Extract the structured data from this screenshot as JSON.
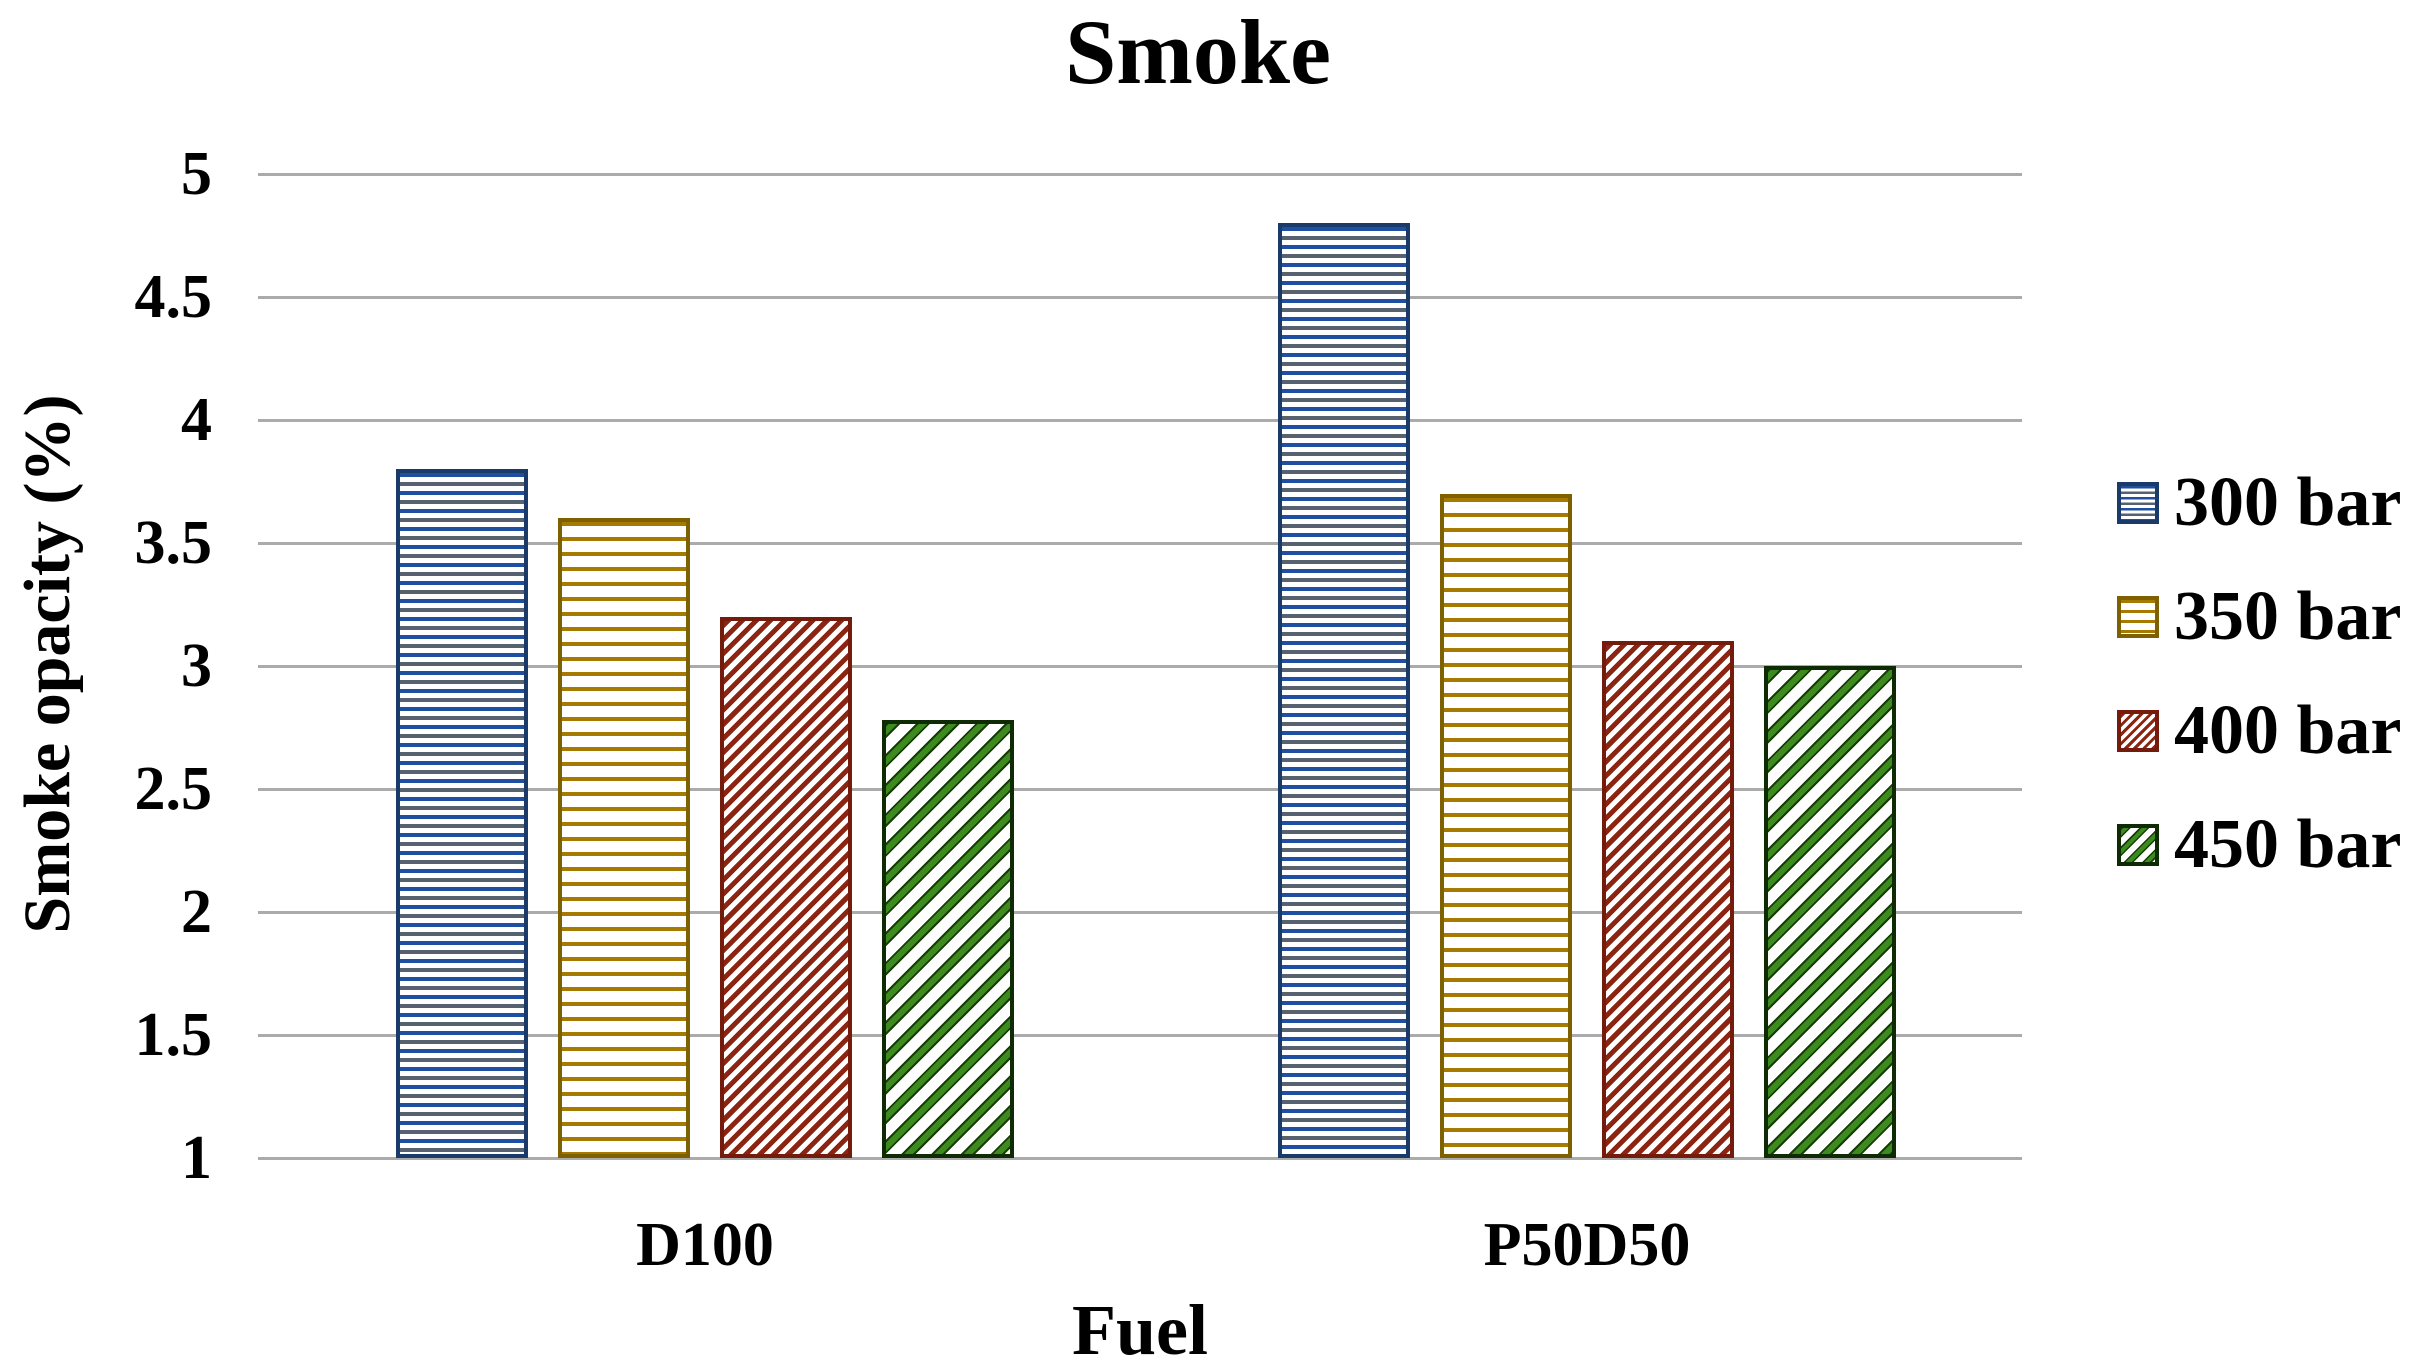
{
  "title": "Smoke",
  "axes": {
    "x_title": "Fuel",
    "y_title": "Smoke opacity (%)",
    "y_tick_labels": [
      "5",
      "4.5",
      "4",
      "3.5",
      "3",
      "2.5",
      "2",
      "1.5",
      "1"
    ],
    "x_category_labels": [
      "D100",
      "P50D50"
    ]
  },
  "legend": {
    "position": "right",
    "items": [
      "300 bar",
      "350 bar",
      "400 bar",
      "450 bar"
    ]
  },
  "colors": {
    "background": "#FFFFFF",
    "gridline": "#ABABAB",
    "text": "#000000",
    "series_300bar_stripe": "#1F4FA0",
    "series_300bar_stripe2": "#566270",
    "series_300bar_border": "#1A3A69",
    "series_350bar_stripe": "#A67A00",
    "series_350bar_border": "#7F6000",
    "series_400bar_stripe": "#8B2512",
    "series_400bar_border": "#741B0B",
    "series_450bar_stripe": "#3D8B1F",
    "series_450bar_stripe2": "#163D06",
    "series_450bar_border": "#0F2B03"
  },
  "chart_data": {
    "type": "bar",
    "title": "Smoke",
    "xlabel": "Fuel",
    "ylabel": "Smoke opacity (%)",
    "categories": [
      "D100",
      "P50D50"
    ],
    "series": [
      {
        "name": "300 bar",
        "values": [
          3.8,
          4.8
        ],
        "pattern": "horizontal-stripes-dense",
        "color": "#1F4FA0",
        "color2": "#566270",
        "border": "#1A3A69"
      },
      {
        "name": "350 bar",
        "values": [
          3.6,
          3.7
        ],
        "pattern": "horizontal-stripes",
        "color": "#A67A00",
        "color2": "#A67A00",
        "border": "#7F6000"
      },
      {
        "name": "400 bar",
        "values": [
          3.2,
          3.1
        ],
        "pattern": "diagonal-stripes-dense",
        "color": "#8B2512",
        "color2": "#8B2512",
        "border": "#741B0B"
      },
      {
        "name": "450 bar",
        "values": [
          2.78,
          3.0
        ],
        "pattern": "diagonal-stripes",
        "color": "#3D8B1F",
        "color2": "#163D06",
        "border": "#0F2B03"
      }
    ],
    "ylim": [
      1,
      5
    ],
    "ytick_step": 0.5,
    "grid": true,
    "legend_position": "right"
  }
}
